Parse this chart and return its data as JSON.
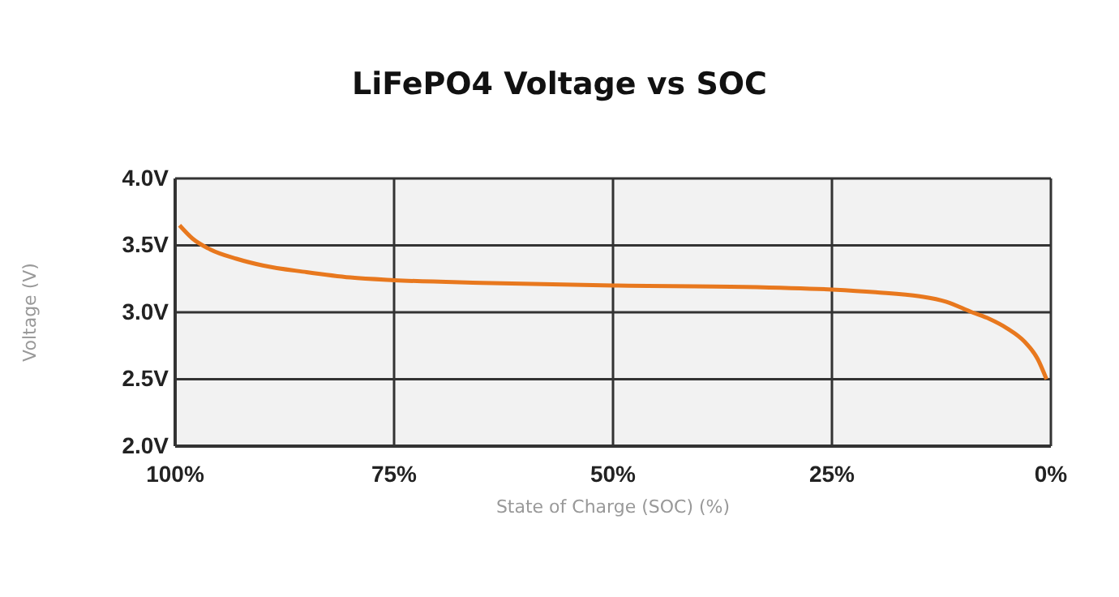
{
  "chart_data": {
    "type": "line",
    "title": "LiFePO4 Voltage vs SOC",
    "xlabel": "State of Charge (SOC) (%)",
    "ylabel": "Voltage (V)",
    "xlim": [
      100,
      0
    ],
    "xticks": [
      {
        "value": 100,
        "label": "100%"
      },
      {
        "value": 75,
        "label": "75%"
      },
      {
        "value": 50,
        "label": "50%"
      },
      {
        "value": 25,
        "label": "25%"
      },
      {
        "value": 0,
        "label": "0%"
      }
    ],
    "ylim": [
      2.0,
      4.0
    ],
    "yticks": [
      {
        "value": 2.0,
        "label": "2.0V"
      },
      {
        "value": 2.5,
        "label": "2.5V"
      },
      {
        "value": 3.0,
        "label": "3.0V"
      },
      {
        "value": 3.5,
        "label": "3.5V"
      },
      {
        "value": 4.0,
        "label": "4.0V"
      }
    ],
    "grid": true,
    "marker": "none",
    "line_style": "solid",
    "series": [
      {
        "color": "#e8781e",
        "x": [
          99.5,
          98,
          96,
          93,
          90,
          85,
          80,
          75,
          65,
          50,
          35,
          25,
          20,
          15,
          12,
          9,
          7,
          5,
          3,
          1.5,
          0.5
        ],
        "values": [
          3.65,
          3.55,
          3.47,
          3.4,
          3.35,
          3.3,
          3.26,
          3.24,
          3.22,
          3.2,
          3.19,
          3.17,
          3.15,
          3.12,
          3.08,
          3.0,
          2.95,
          2.88,
          2.78,
          2.65,
          2.5
        ]
      }
    ]
  }
}
